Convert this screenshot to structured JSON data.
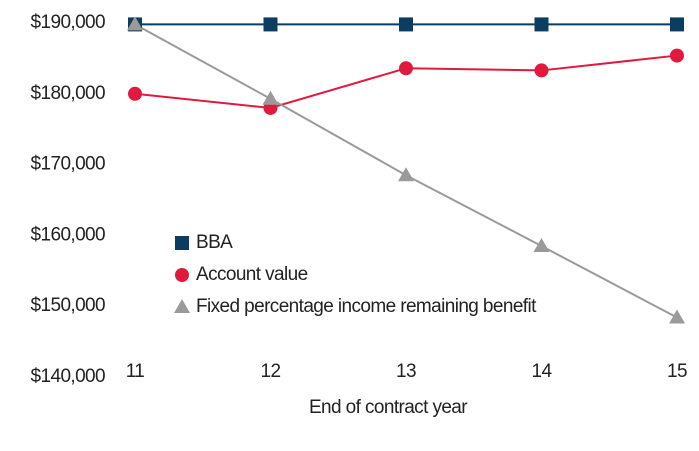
{
  "chart_data": {
    "type": "line",
    "x_label": "End of contract year",
    "x": [
      11,
      12,
      13,
      14,
      15
    ],
    "xlim": [
      11,
      15
    ],
    "xticks": [
      11,
      12,
      13,
      14,
      15
    ],
    "ylim": [
      140000,
      190000
    ],
    "yticks": [
      {
        "value": 140000,
        "label": "$140,000"
      },
      {
        "value": 150000,
        "label": "$150,000"
      },
      {
        "value": 160000,
        "label": "$160,000"
      },
      {
        "value": 170000,
        "label": "$170,000"
      },
      {
        "value": 180000,
        "label": "$180,000"
      },
      {
        "value": 190000,
        "label": "$190,000"
      }
    ],
    "grid": false,
    "legend": "lower left",
    "series": [
      {
        "name": "BBA",
        "color": "#0b3c61",
        "marker": "square",
        "values": [
          189800,
          189800,
          189800,
          189800,
          189800
        ]
      },
      {
        "name": "Account value",
        "color": "#e0193f",
        "marker": "circle",
        "values": [
          180000,
          178000,
          183600,
          183300,
          185400
        ]
      },
      {
        "name": "Fixed percentage income remaining benefit",
        "color": "#9a9a9a",
        "marker": "triangle",
        "values": [
          189800,
          179300,
          168500,
          158500,
          148400
        ]
      }
    ]
  }
}
